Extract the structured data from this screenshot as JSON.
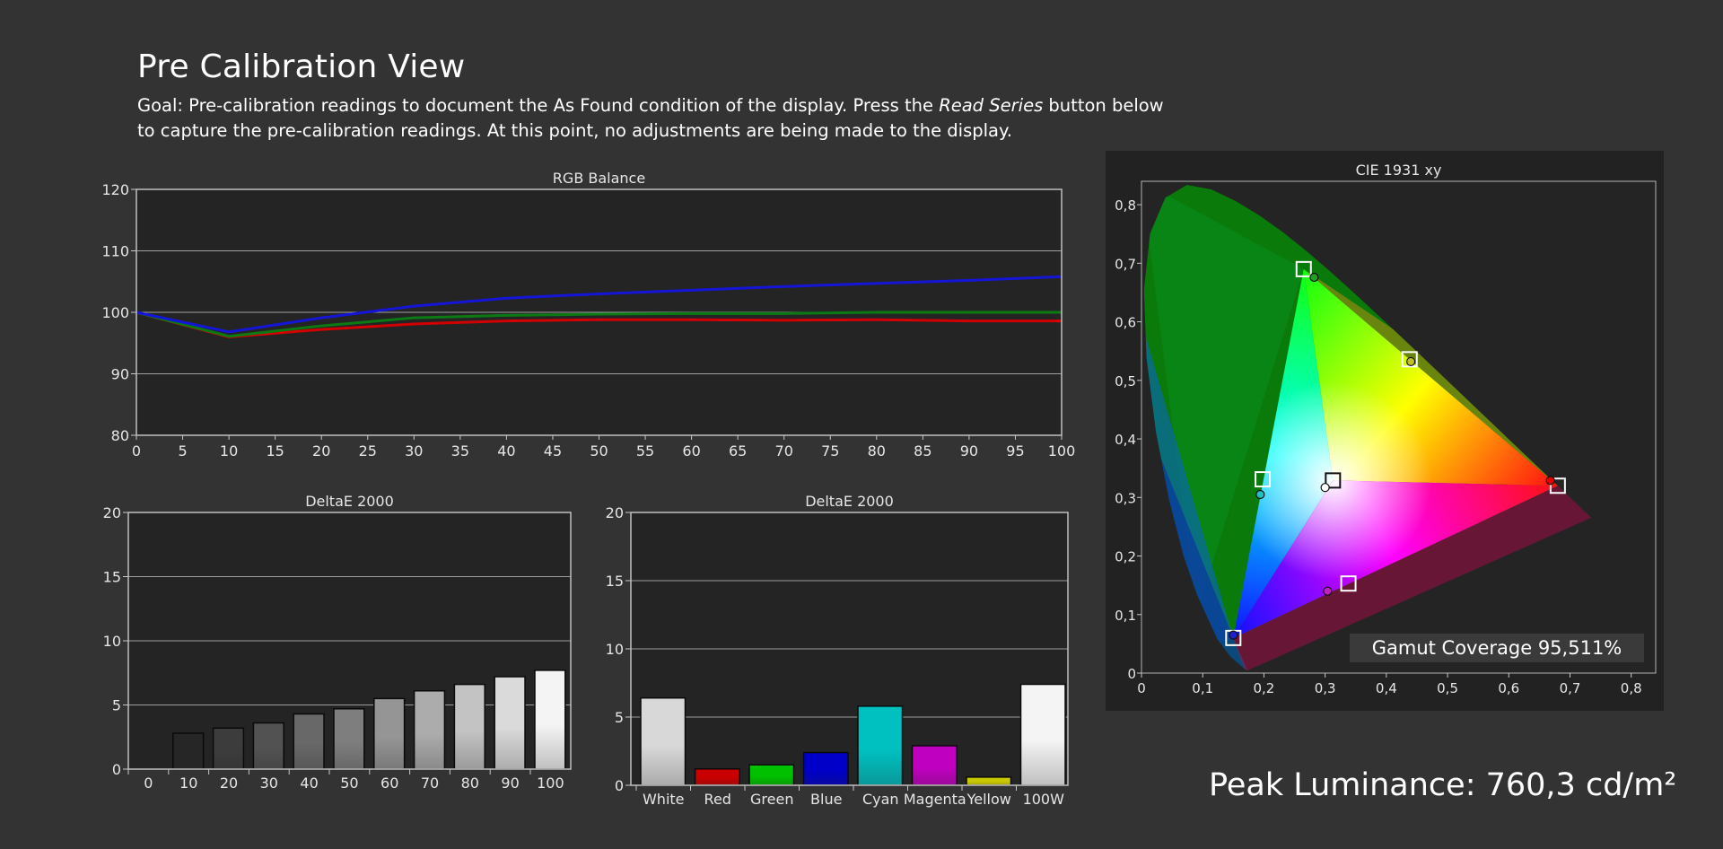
{
  "page": {
    "title": "Pre Calibration View",
    "goal_prefix": "Goal: Pre-calibration readings to document the As Found condition of the display. Press the ",
    "goal_emphasis": "Read Series",
    "goal_suffix": " button below to capture the pre-calibration readings. At this point, no adjustments are being made to the display."
  },
  "peak_luminance": "Peak Luminance: 760,3 cd/m²",
  "gamut_coverage": "Gamut Coverage 95,511%",
  "colors": {
    "background": "#333333",
    "plot_background": "#242424",
    "red_line": "#d20000",
    "green_line": "#0b7a12",
    "blue_line": "#1515d8"
  },
  "chart_data": [
    {
      "id": "rgb",
      "type": "line",
      "title": "RGB Balance",
      "x": [
        0,
        10,
        20,
        30,
        40,
        50,
        60,
        70,
        80,
        90,
        100
      ],
      "xticks": [
        "0",
        "5",
        "10",
        "15",
        "20",
        "25",
        "30",
        "35",
        "40",
        "45",
        "50",
        "55",
        "60",
        "65",
        "70",
        "75",
        "80",
        "85",
        "90",
        "95",
        "100"
      ],
      "xlim": [
        0,
        100
      ],
      "ylim": [
        80,
        120
      ],
      "yticks": [
        "80",
        "90",
        "100",
        "110",
        "120"
      ],
      "grid": true,
      "series": [
        {
          "color": "#d20000",
          "values": [
            100,
            96.0,
            97.2,
            98.1,
            98.6,
            98.8,
            98.8,
            98.7,
            98.8,
            98.6,
            98.6
          ]
        },
        {
          "color": "#0b7a12",
          "values": [
            100,
            96.1,
            97.8,
            99.1,
            99.5,
            99.7,
            99.8,
            99.8,
            100.0,
            100.0,
            100.0
          ]
        },
        {
          "color": "#1515d8",
          "values": [
            100,
            96.8,
            99.1,
            101.0,
            102.3,
            103.0,
            103.6,
            104.2,
            104.7,
            105.2,
            105.8
          ]
        }
      ]
    },
    {
      "id": "gray_de",
      "type": "bar",
      "title": "DeltaE 2000",
      "categories": [
        "0",
        "10",
        "20",
        "30",
        "40",
        "50",
        "60",
        "70",
        "80",
        "90",
        "100"
      ],
      "values": [
        0,
        2.8,
        3.2,
        3.6,
        4.3,
        4.7,
        5.5,
        6.1,
        6.6,
        7.2,
        7.7
      ],
      "bar_colors": [
        "#000000",
        "#262626",
        "#3c3c3c",
        "#525252",
        "#686868",
        "#7e7e7e",
        "#959595",
        "#acacac",
        "#c3c3c3",
        "#dadada",
        "#f4f4f4"
      ],
      "ylim": [
        0,
        20
      ],
      "yticks": [
        "0",
        "5",
        "10",
        "15",
        "20"
      ],
      "grid": true
    },
    {
      "id": "color_de",
      "type": "bar",
      "title": "DeltaE 2000",
      "categories": [
        "White",
        "Red",
        "Green",
        "Blue",
        "Cyan",
        "Magenta",
        "Yellow",
        "100W"
      ],
      "values": [
        6.4,
        1.2,
        1.5,
        2.4,
        5.8,
        2.9,
        0.6,
        7.4
      ],
      "bar_colors": [
        "#d8d8d8",
        "#c80000",
        "#00c000",
        "#0000c8",
        "#00c0c0",
        "#c000c0",
        "#c8c800",
        "#f4f4f4"
      ],
      "ylim": [
        0,
        20
      ],
      "yticks": [
        "0",
        "5",
        "10",
        "15",
        "20"
      ],
      "grid": true
    },
    {
      "id": "cie",
      "type": "scatter",
      "title": "CIE 1931 xy",
      "xlim": [
        0,
        0.84
      ],
      "ylim": [
        0,
        0.84
      ],
      "xticks": [
        "0",
        "0,1",
        "0,2",
        "0,3",
        "0,4",
        "0,5",
        "0,6",
        "0,7",
        "0,8"
      ],
      "yticks": [
        "0",
        "0,1",
        "0,2",
        "0,3",
        "0,4",
        "0,5",
        "0,6",
        "0,7",
        "0,8"
      ],
      "targets": [
        {
          "name": "Red",
          "x": 0.68,
          "y": 0.32
        },
        {
          "name": "Green",
          "x": 0.265,
          "y": 0.69
        },
        {
          "name": "Blue",
          "x": 0.15,
          "y": 0.06
        },
        {
          "name": "White",
          "x": 0.3127,
          "y": 0.329
        },
        {
          "name": "Cyan",
          "x": 0.198,
          "y": 0.331
        },
        {
          "name": "Magenta",
          "x": 0.338,
          "y": 0.153
        },
        {
          "name": "Yellow",
          "x": 0.438,
          "y": 0.536
        }
      ],
      "measured": [
        {
          "name": "Red",
          "x": 0.668,
          "y": 0.329
        },
        {
          "name": "Green",
          "x": 0.282,
          "y": 0.676
        },
        {
          "name": "Blue",
          "x": 0.15,
          "y": 0.065
        },
        {
          "name": "White",
          "x": 0.3,
          "y": 0.317
        },
        {
          "name": "Cyan",
          "x": 0.194,
          "y": 0.305
        },
        {
          "name": "Magenta",
          "x": 0.304,
          "y": 0.14
        },
        {
          "name": "Yellow",
          "x": 0.44,
          "y": 0.532
        }
      ]
    }
  ]
}
